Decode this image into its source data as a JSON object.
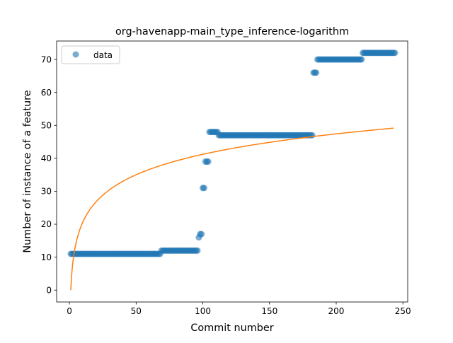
{
  "chart_data": {
    "type": "scatter",
    "title": "org-havenapp-main_type_inference-logarithm",
    "xlabel": "Commit number",
    "ylabel": "Number of instance of a feature",
    "xlim": [
      -9.6,
      253.6
    ],
    "ylim": [
      -3.6,
      75.6
    ],
    "x_ticks": [
      0,
      50,
      100,
      150,
      200,
      250
    ],
    "y_ticks": [
      0,
      10,
      20,
      30,
      40,
      50,
      60,
      70
    ],
    "grid": false,
    "legend": {
      "position": "top-left",
      "entries": [
        "data"
      ]
    },
    "series": [
      {
        "name": "data",
        "kind": "scatter",
        "color": "#1f77b4",
        "alpha": 0.6,
        "segments": [
          {
            "x_start": 1,
            "x_end": 68,
            "y": 11
          },
          {
            "x_start": 69,
            "x_end": 96,
            "y": 12
          },
          {
            "x_start": 97,
            "x_end": 97,
            "y": 16
          },
          {
            "x_start": 98,
            "x_end": 99,
            "y": 17
          },
          {
            "x_start": 100,
            "x_end": 101,
            "y": 31
          },
          {
            "x_start": 102,
            "x_end": 104,
            "y": 39
          },
          {
            "x_start": 105,
            "x_end": 111,
            "y": 48
          },
          {
            "x_start": 112,
            "x_end": 182,
            "y": 47
          },
          {
            "x_start": 183,
            "x_end": 185,
            "y": 66
          },
          {
            "x_start": 186,
            "x_end": 219,
            "y": 70
          },
          {
            "x_start": 220,
            "x_end": 244,
            "y": 72
          }
        ]
      },
      {
        "kind": "line",
        "color": "#ff7f0e",
        "equation": "y = 8.95 * ln(x)",
        "coef": 8.95,
        "x_start": 1,
        "x_end": 243
      }
    ]
  }
}
